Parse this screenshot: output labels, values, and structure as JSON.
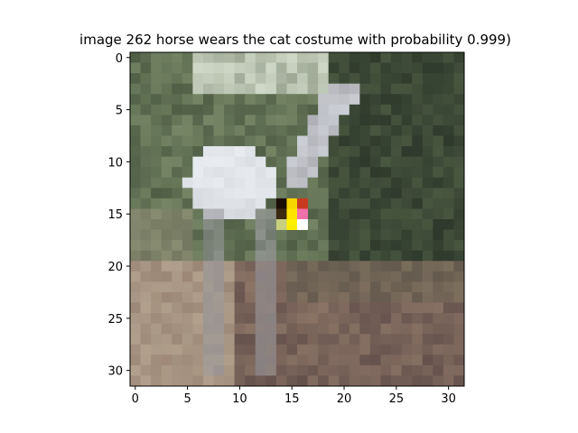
{
  "chart_data": {
    "type": "heatmap",
    "title": "image 262  horse wears the cat costume with probability 0.999)",
    "xlabel": "",
    "ylabel": "",
    "xlim": [
      -0.5,
      31.5
    ],
    "ylim": [
      31.5,
      -0.5
    ],
    "grid": false,
    "legend": "none",
    "x_ticks": [
      0,
      5,
      10,
      15,
      20,
      25,
      30
    ],
    "y_ticks": [
      0,
      5,
      10,
      15,
      20,
      25,
      30
    ],
    "x_tick_labels": [
      "0",
      "5",
      "10",
      "15",
      "20",
      "25",
      "30"
    ],
    "y_tick_labels": [
      "0",
      "5",
      "10",
      "15",
      "20",
      "25",
      "30"
    ],
    "image": {
      "width": 32,
      "height": 32,
      "description_colors": {
        "foliage_dark": "#2f3a2c",
        "foliage_mid": "#4f5e45",
        "foliage_light": "#8fa07a",
        "horse_white": "#e8ecf0",
        "horse_grey": "#9a9aa0",
        "ground_light": "#b0a08c",
        "ground_mid": "#8e7668",
        "ground_dark": "#5e4c48"
      },
      "patch": {
        "rows": [
          14,
          15,
          16
        ],
        "cols": [
          14,
          15,
          16
        ],
        "colors": [
          [
            "#1a0d05",
            "#f5d400",
            "#c83a20"
          ],
          [
            "#3a2a10",
            "#ffe300",
            "#f070a8"
          ],
          [
            "#c8d080",
            "#ffee00",
            "#ffffff"
          ]
        ]
      }
    }
  }
}
